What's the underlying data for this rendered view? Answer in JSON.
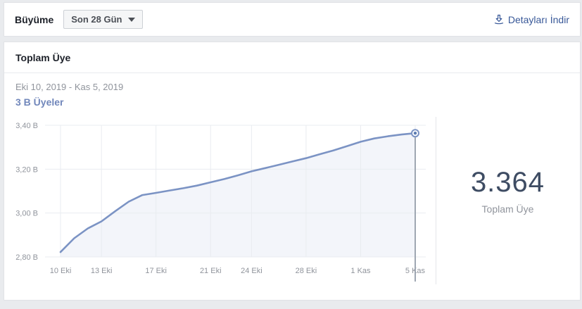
{
  "header": {
    "title": "Büyüme",
    "range_selector": {
      "value": "Son 28 Gün"
    },
    "download_label": "Detayları İndir"
  },
  "card": {
    "title": "Toplam Üye",
    "date_range": "Eki 10, 2019 - Kas 5, 2019",
    "series_label": "3 B Üyeler",
    "summary": {
      "value": "3.364",
      "label": "Toplam Üye"
    }
  },
  "colors": {
    "link_blue": "#385898",
    "line": "#7b93c4",
    "area_fill": "rgba(123,147,196,0.09)",
    "grid": "#e9ecf0",
    "axis_text": "#90949c",
    "marker_line": "#9fa7b2",
    "marker_dot": "#5c7cb0",
    "series_label": "#7187bb",
    "big_number": "#3e4c63"
  },
  "chart_data": {
    "type": "area",
    "title": "Toplam Üye",
    "subtitle": "Eki 10, 2019 - Kas 5, 2019",
    "legend": "none",
    "grid": true,
    "x_unit": "days since Eki 10, 2019",
    "day_span": 26,
    "days": [
      0,
      1,
      2,
      3,
      4,
      5,
      6,
      7,
      8,
      9,
      10,
      11,
      12,
      13,
      14,
      15,
      16,
      17,
      18,
      19,
      20,
      21,
      22,
      23,
      24,
      25,
      26
    ],
    "values": [
      2.822,
      2.885,
      2.93,
      2.962,
      3.008,
      3.052,
      3.082,
      3.092,
      3.103,
      3.113,
      3.125,
      3.14,
      3.155,
      3.172,
      3.19,
      3.205,
      3.22,
      3.235,
      3.25,
      3.268,
      3.285,
      3.305,
      3.325,
      3.34,
      3.35,
      3.358,
      3.364
    ],
    "value_unit": "B (bin üye)",
    "ylim": [
      2.8,
      3.4
    ],
    "y_ticks": [
      {
        "value": 2.8,
        "label": "2,80 B"
      },
      {
        "value": 3.0,
        "label": "3,00 B"
      },
      {
        "value": 3.2,
        "label": "3,20 B"
      },
      {
        "value": 3.4,
        "label": "3,40 B"
      }
    ],
    "x_ticks": [
      {
        "day": 0,
        "label": "10 Eki"
      },
      {
        "day": 3,
        "label": "13 Eki"
      },
      {
        "day": 7,
        "label": "17 Eki"
      },
      {
        "day": 11,
        "label": "21 Eki"
      },
      {
        "day": 14,
        "label": "24 Eki"
      },
      {
        "day": 18,
        "label": "28 Eki"
      },
      {
        "day": 22,
        "label": "1 Kas"
      },
      {
        "day": 26,
        "label": "5 Kas"
      }
    ],
    "end_marker": {
      "day": 26,
      "value": 3.364,
      "display": "3.364"
    }
  }
}
